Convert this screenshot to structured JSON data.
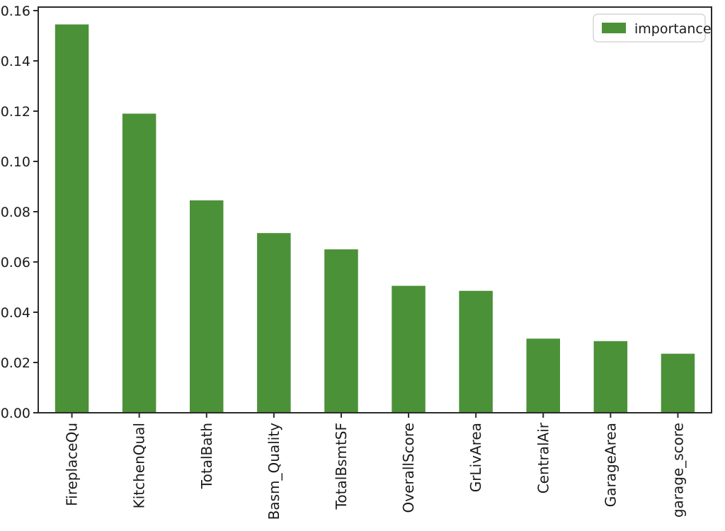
{
  "chart_data": {
    "type": "bar",
    "title": "",
    "xlabel": "",
    "ylabel": "",
    "categories": [
      "FireplaceQu",
      "KitchenQual",
      "TotalBath",
      "Basm_Quality",
      "TotalBsmtSF",
      "OverallScore",
      "GrLivArea",
      "CentralAir",
      "GarageArea",
      "garage_score"
    ],
    "series": [
      {
        "name": "importance",
        "values": [
          0.1545,
          0.119,
          0.0845,
          0.0715,
          0.065,
          0.0505,
          0.0485,
          0.0295,
          0.0285,
          0.0235
        ]
      }
    ],
    "ylim": [
      0,
      0.1614
    ],
    "yticks": [
      "0.00",
      "0.02",
      "0.04",
      "0.06",
      "0.08",
      "0.10",
      "0.12",
      "0.14",
      "0.16"
    ],
    "x_label_rotation": 90,
    "bar_width_fraction": 0.5,
    "grid": false,
    "legend": {
      "label": "importance",
      "position": "upper right"
    },
    "colors": {
      "bar": "#4b9138",
      "axis": "#2b2b2b",
      "tick_label": "#1a1a1a",
      "legend_border": "#d6d6d6",
      "legend_bg": "#ffffff",
      "background": "#ffffff"
    }
  }
}
